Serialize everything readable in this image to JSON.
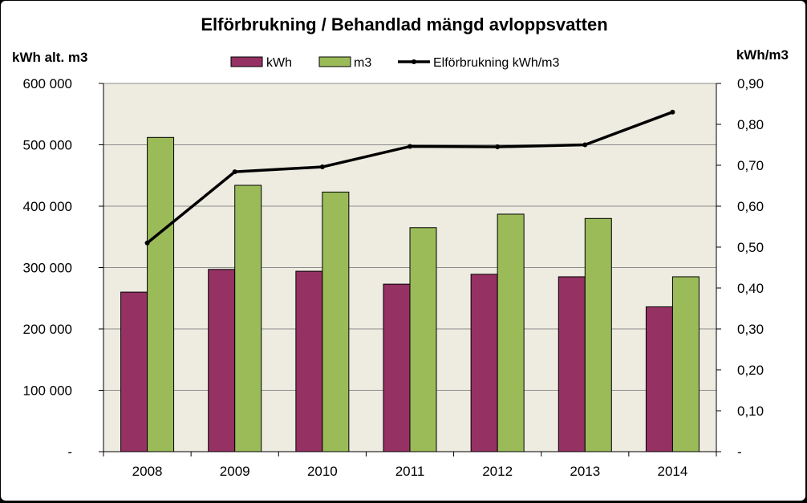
{
  "chart_data": {
    "type": "bar",
    "title": "Elförbrukning / Behandlad mängd avloppsvatten",
    "ylabel_left": "kWh alt. m3",
    "ylabel_right": "kWh/m3",
    "categories": [
      "2008",
      "2009",
      "2010",
      "2011",
      "2012",
      "2013",
      "2014"
    ],
    "ylim_left": [
      0,
      600000
    ],
    "ylim_right": [
      0,
      0.9
    ],
    "left_ticks": [
      "-",
      "100 000",
      "200 000",
      "300 000",
      "400 000",
      "500 000",
      "600 000"
    ],
    "right_ticks": [
      "-",
      "0,10",
      "0,20",
      "0,30",
      "0,40",
      "0,50",
      "0,60",
      "0,70",
      "0,80",
      "0,90"
    ],
    "series": [
      {
        "name": "kWh",
        "type": "bar",
        "axis": "left",
        "color": "#953163",
        "values": [
          260000,
          297000,
          294000,
          273000,
          289000,
          285000,
          236000
        ]
      },
      {
        "name": "m3",
        "type": "bar",
        "axis": "left",
        "color": "#9bbb59",
        "values": [
          512000,
          434000,
          423000,
          365000,
          387000,
          380000,
          285000
        ]
      },
      {
        "name": "Elförbrukning kWh/m3",
        "type": "line",
        "axis": "right",
        "color": "#000000",
        "values": [
          0.51,
          0.684,
          0.696,
          0.746,
          0.745,
          0.75,
          0.83
        ]
      }
    ],
    "grid": true,
    "legend_position": "top",
    "plot_background": "#eeece1"
  }
}
